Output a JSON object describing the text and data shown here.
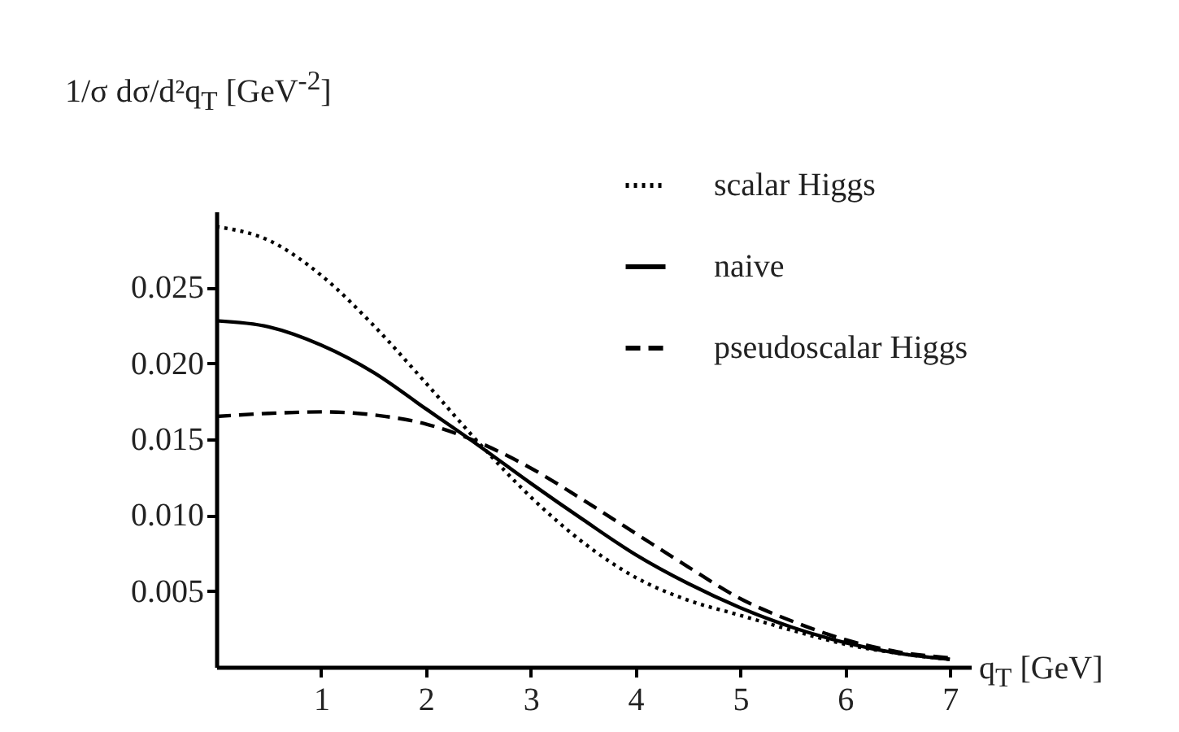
{
  "chart_data": {
    "type": "line",
    "ylabel": "1/σ dσ/d²q$_{T}$ [GeV$^{-2}$]",
    "xlabel": "q$_{T}$ [GeV]",
    "x": [
      0,
      0.5,
      1,
      1.5,
      2,
      2.5,
      3,
      3.5,
      4,
      4.5,
      5,
      5.5,
      6,
      6.5,
      7
    ],
    "xlim": [
      0,
      7.2
    ],
    "xticks": [
      1,
      2,
      3,
      4,
      5,
      6,
      7
    ],
    "ylim": [
      0,
      0.03
    ],
    "yticks": [
      {
        "value": 0.005,
        "label": "0.005"
      },
      {
        "value": 0.01,
        "label": "0.010"
      },
      {
        "value": 0.015,
        "label": "0.015"
      },
      {
        "value": 0.02,
        "label": "0.020"
      },
      {
        "value": 0.025,
        "label": "0.025"
      }
    ],
    "legend": "top right",
    "grid": false,
    "series": [
      {
        "name": "scalar Higgs",
        "color": "#000000",
        "line_style": "dotted",
        "values": [
          0.029,
          0.0281,
          0.0258,
          0.0225,
          0.0187,
          0.0148,
          0.0112,
          0.0082,
          0.0059,
          0.0044,
          0.0034,
          0.0024,
          0.0015,
          0.0009,
          0.0005
        ]
      },
      {
        "name": "naive",
        "color": "#000000",
        "line_style": "solid",
        "values": [
          0.0228,
          0.0224,
          0.0212,
          0.0194,
          0.017,
          0.0146,
          0.0121,
          0.0097,
          0.0074,
          0.0055,
          0.0039,
          0.0026,
          0.0016,
          0.0009,
          0.0005
        ]
      },
      {
        "name": "pseudoscalar Higgs",
        "color": "#000000",
        "line_style": "dashed",
        "values": [
          0.0165,
          0.0167,
          0.0168,
          0.0166,
          0.016,
          0.0148,
          0.0131,
          0.011,
          0.0088,
          0.0066,
          0.0045,
          0.003,
          0.0018,
          0.001,
          0.0006
        ]
      }
    ]
  }
}
